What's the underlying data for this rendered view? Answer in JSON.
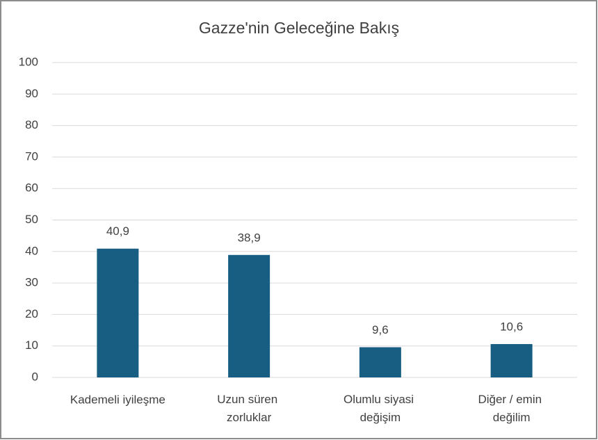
{
  "chart_data": {
    "type": "bar",
    "title": "Gazze'nin Geleceğine Bakış",
    "categories": [
      "Kademeli iyileşme",
      "Uzun süren zorluklar",
      "Olumlu siyasi değişim",
      "Diğer / emin değilim"
    ],
    "values": [
      40.9,
      38.9,
      9.6,
      10.6
    ],
    "value_labels": [
      "40,9",
      "38,9",
      "9,6",
      "10,6"
    ],
    "color": "#175e82",
    "ylim": [
      0,
      100
    ],
    "yticks": [
      0,
      10,
      20,
      30,
      40,
      50,
      60,
      70,
      80,
      90,
      100
    ],
    "grid": true
  }
}
